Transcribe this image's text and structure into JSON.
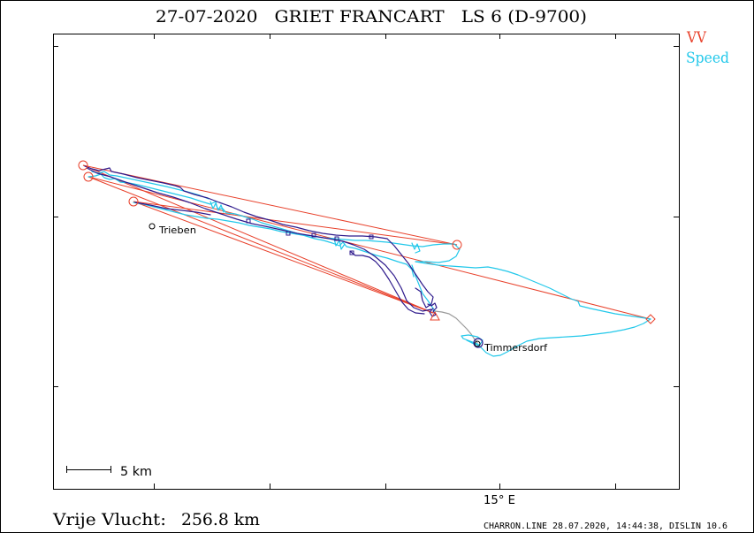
{
  "title": "27-07-2020   GRIET FRANCART   LS 6 (D-9700)",
  "legend": [
    {
      "label": "VV",
      "color": "#e8402a"
    },
    {
      "label": "Speed",
      "color": "#22c8ea"
    }
  ],
  "map": {
    "x_tick_label": "15° E",
    "scale_bar_label": "5 km",
    "places": [
      {
        "name": "Trieben"
      },
      {
        "name": "Timmersdorf"
      }
    ]
  },
  "summary": {
    "label": "Vrije Vlucht:",
    "distance": "256.8 km"
  },
  "footer": "CHARRON.LINE 28.07.2020, 14:44:38, DISLIN 10.6",
  "colors": {
    "track": "#2e1a8c",
    "tow": "#9a9a9a",
    "turnpoint": "#e8402a",
    "speed": "#22c8ea"
  }
}
